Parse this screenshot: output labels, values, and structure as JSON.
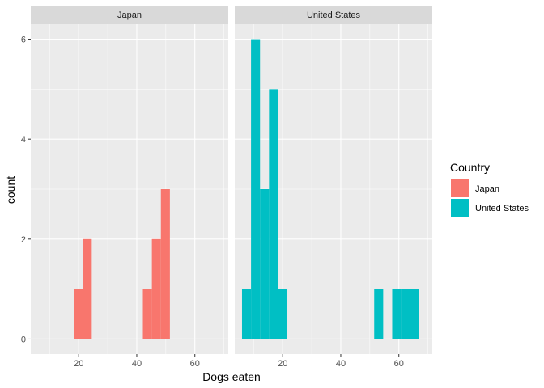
{
  "chart_data": {
    "type": "histogram",
    "facet_by": "Country",
    "bin_width": 3.1,
    "xlabel": "Dogs eaten",
    "ylabel": "count",
    "xlim": [
      3.5,
      71.5
    ],
    "ylim": [
      -0.3,
      6.3
    ],
    "x_ticks": [
      20,
      40,
      60
    ],
    "y_ticks": [
      0,
      2,
      4,
      6
    ],
    "grid": true,
    "legend": {
      "title": "Country",
      "position": "right",
      "entries": [
        {
          "label": "Japan",
          "color": "#F8766D"
        },
        {
          "label": "United States",
          "color": "#00BFC4"
        }
      ]
    },
    "facets": [
      {
        "strip": "Japan",
        "color": "#F8766D",
        "bins": [
          {
            "x0": 18.3,
            "x1": 21.4,
            "count": 1
          },
          {
            "x0": 21.4,
            "x1": 24.5,
            "count": 2
          },
          {
            "x0": 42.1,
            "x1": 45.2,
            "count": 1
          },
          {
            "x0": 45.2,
            "x1": 48.3,
            "count": 2
          },
          {
            "x0": 48.3,
            "x1": 51.4,
            "count": 3
          }
        ]
      },
      {
        "strip": "United States",
        "color": "#00BFC4",
        "bins": [
          {
            "x0": 6.0,
            "x1": 9.1,
            "count": 1
          },
          {
            "x0": 9.1,
            "x1": 12.2,
            "count": 6
          },
          {
            "x0": 12.2,
            "x1": 15.3,
            "count": 3
          },
          {
            "x0": 15.3,
            "x1": 18.4,
            "count": 5
          },
          {
            "x0": 18.4,
            "x1": 21.5,
            "count": 1
          },
          {
            "x0": 51.5,
            "x1": 54.6,
            "count": 1
          },
          {
            "x0": 57.7,
            "x1": 60.8,
            "count": 1
          },
          {
            "x0": 60.8,
            "x1": 63.9,
            "count": 1
          },
          {
            "x0": 63.9,
            "x1": 67.0,
            "count": 1
          }
        ]
      }
    ]
  }
}
